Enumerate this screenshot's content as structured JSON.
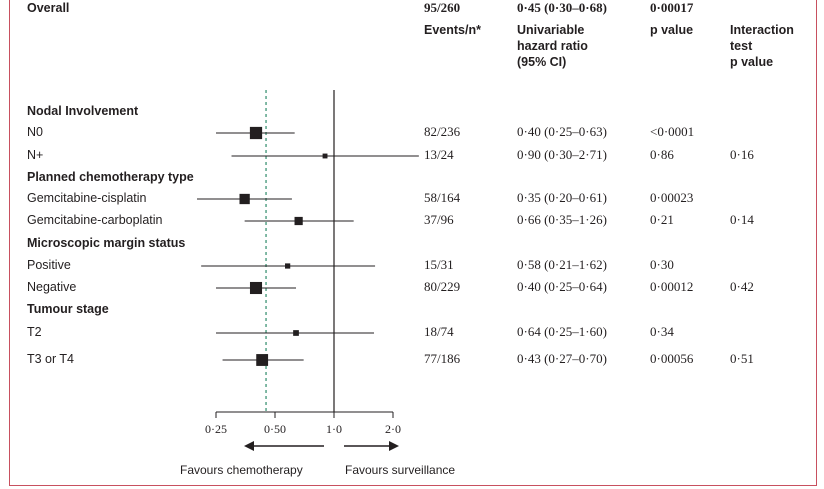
{
  "columns": {
    "events": "Events/n*",
    "hr": "Univariable\nhazard ratio\n(95% CI)",
    "p": "p value",
    "interaction": "Interaction\ntest\np value"
  },
  "colors": {
    "frame": "#c8505f",
    "ink": "#231f20",
    "reference_line": "#2e8b6a"
  },
  "chart_data": {
    "type": "forest",
    "x_scale": "log2",
    "xlim": [
      0.25,
      2.0
    ],
    "x_ticks": [
      0.25,
      0.5,
      1.0,
      2.0
    ],
    "x_tick_labels": [
      "0·25",
      "0·50",
      "1·0",
      "2·0"
    ],
    "reference_line": 1.0,
    "overall_line": 0.45,
    "favour_left": "Favours chemotherapy",
    "favour_right": "Favours surveillance",
    "rows": [
      {
        "type": "group",
        "label": "Nodal Involvement"
      },
      {
        "type": "item",
        "label": "N0",
        "events": "82/236",
        "hr_text": "0·40 (0·25–0·63)",
        "p": "<0·0001",
        "interaction": "",
        "hr": 0.4,
        "lo": 0.25,
        "hi": 0.63,
        "weight": 82
      },
      {
        "type": "item",
        "label": "N+",
        "events": "13/24",
        "hr_text": "0·90 (0·30–2·71)",
        "p": "0·86",
        "interaction": "0·16",
        "hr": 0.9,
        "lo": 0.3,
        "hi": 2.71,
        "weight": 13
      },
      {
        "type": "group",
        "label": "Planned chemotherapy type"
      },
      {
        "type": "item",
        "label": "Gemcitabine-cisplatin",
        "events": "58/164",
        "hr_text": "0·35 (0·20–0·61)",
        "p": "0·00023",
        "interaction": "",
        "hr": 0.35,
        "lo": 0.2,
        "hi": 0.61,
        "weight": 58
      },
      {
        "type": "item",
        "label": "Gemcitabine-carboplatin",
        "events": "37/96",
        "hr_text": "0·66 (0·35–1·26)",
        "p": "0·21",
        "interaction": "0·14",
        "hr": 0.66,
        "lo": 0.35,
        "hi": 1.26,
        "weight": 37
      },
      {
        "type": "group",
        "label": "Microscopic margin status"
      },
      {
        "type": "item",
        "label": "Positive",
        "events": "15/31",
        "hr_text": "0·58 (0·21–1·62)",
        "p": "0·30",
        "interaction": "",
        "hr": 0.58,
        "lo": 0.21,
        "hi": 1.62,
        "weight": 15
      },
      {
        "type": "item",
        "label": "Negative",
        "events": "80/229",
        "hr_text": "0·40 (0·25–0·64)",
        "p": "0·00012",
        "interaction": "0·42",
        "hr": 0.4,
        "lo": 0.25,
        "hi": 0.64,
        "weight": 80
      },
      {
        "type": "group",
        "label": "Tumour stage"
      },
      {
        "type": "item",
        "label": "T2",
        "events": "18/74",
        "hr_text": "0·64 (0·25–1·60)",
        "p": "0·34",
        "interaction": "",
        "hr": 0.64,
        "lo": 0.25,
        "hi": 1.6,
        "weight": 18
      },
      {
        "type": "item",
        "label": "T3 or T4",
        "events": "77/186",
        "hr_text": "0·43 (0·27–0·70)",
        "p": "0·00056",
        "interaction": "0·51",
        "hr": 0.43,
        "lo": 0.27,
        "hi": 0.7,
        "weight": 77
      },
      {
        "type": "overall",
        "label": "Overall",
        "events": "95/260",
        "hr_text": "0·45 (0·30–0·68)",
        "p": "0·00017",
        "interaction": "",
        "hr": 0.45,
        "lo": 0.3,
        "hi": 0.68
      }
    ]
  }
}
